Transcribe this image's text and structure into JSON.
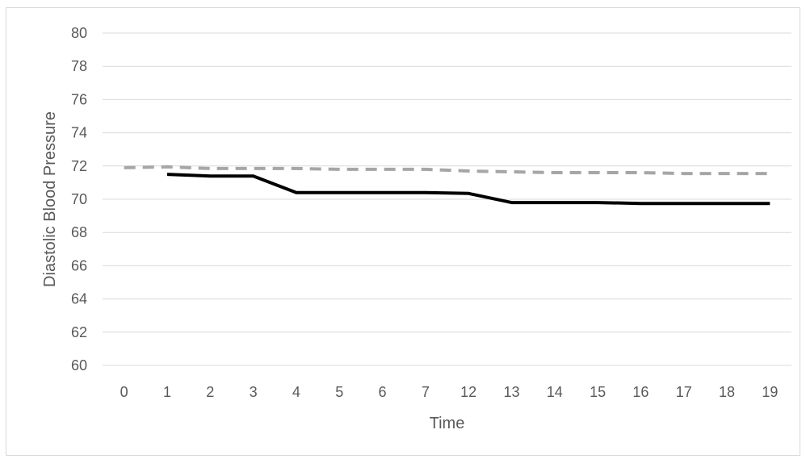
{
  "chart_data": {
    "type": "line",
    "title": "",
    "xlabel": "Time",
    "ylabel": "Diastolic Blood Pressure",
    "categories": [
      "0",
      "1",
      "2",
      "3",
      "4",
      "5",
      "6",
      "7",
      "12",
      "13",
      "14",
      "15",
      "16",
      "17",
      "18",
      "19"
    ],
    "yticks": [
      60,
      62,
      64,
      66,
      68,
      70,
      72,
      74,
      76,
      78,
      80
    ],
    "ylim": [
      60,
      80
    ],
    "grid": true,
    "legend": "none",
    "series": [
      {
        "style": "dashed",
        "color": "#a6a6a6",
        "values": [
          71.9,
          71.95,
          71.85,
          71.85,
          71.85,
          71.8,
          71.8,
          71.8,
          71.7,
          71.65,
          71.6,
          71.6,
          71.6,
          71.55,
          71.55,
          71.55
        ]
      },
      {
        "style": "solid",
        "color": "#000000",
        "values": [
          null,
          71.5,
          71.4,
          71.4,
          70.4,
          70.4,
          70.4,
          70.4,
          70.35,
          69.8,
          69.8,
          69.8,
          69.75,
          69.75,
          69.75,
          69.75
        ]
      }
    ]
  }
}
